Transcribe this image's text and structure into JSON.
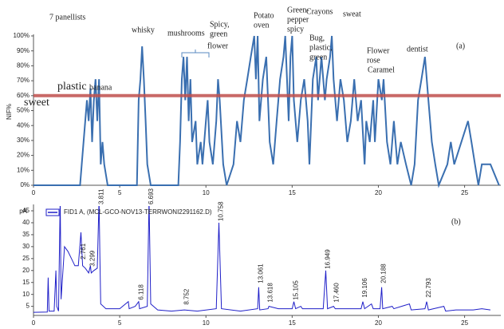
{
  "chart_data": [
    {
      "type": "line",
      "panel_label": "(a)",
      "y_label": "NIF%",
      "color": "#3a6fb0",
      "threshold": 60,
      "threshold_color": "#c0504d",
      "annotations": [
        [
          "7 panellists"
        ],
        [
          "whisky"
        ],
        [
          "mushrooms"
        ],
        [
          "flower"
        ],
        [
          "Spicy,",
          "green"
        ],
        [
          "Potato",
          "oven"
        ],
        [
          "Green-",
          "pepper",
          "spicy"
        ],
        [
          "Crayons"
        ],
        [
          "sweat"
        ],
        [
          "Bug,",
          "plastic,",
          "green"
        ],
        [
          "Flower",
          "rose"
        ],
        [
          "Caramel"
        ],
        [
          "dentist"
        ],
        [
          "sweet"
        ],
        [
          "plastic"
        ],
        [
          "banana"
        ]
      ],
      "x": [
        0,
        2.7,
        2.8,
        3.0,
        3.1,
        3.2,
        3.3,
        3.4,
        3.5,
        3.6,
        3.7,
        3.8,
        3.9,
        4.0,
        4.1,
        4.3,
        6.0,
        6.1,
        6.2,
        6.3,
        6.4,
        6.5,
        6.6,
        6.8,
        8.4,
        8.5,
        8.6,
        8.7,
        8.8,
        8.9,
        9.0,
        9.1,
        9.2,
        9.4,
        9.5,
        9.7,
        9.8,
        10.0,
        10.1,
        10.2,
        10.4,
        10.6,
        10.7,
        10.8,
        11.0,
        11.2,
        11.6,
        11.8,
        12.0,
        12.2,
        12.4,
        12.6,
        12.8,
        12.9,
        13.0,
        13.1,
        13.3,
        13.5,
        13.6,
        13.7,
        13.9,
        14.1,
        14.3,
        14.5,
        14.6,
        14.7,
        14.8,
        14.9,
        15.0,
        15.1,
        15.3,
        15.5,
        15.7,
        15.9,
        16.0,
        16.2,
        16.4,
        16.5,
        16.7,
        16.9,
        17.0,
        17.2,
        17.3,
        17.4,
        17.6,
        17.8,
        18.0,
        18.2,
        18.4,
        18.6,
        18.8,
        19.0,
        19.2,
        19.3,
        19.5,
        19.7,
        19.8,
        20.0,
        20.2,
        20.3,
        20.5,
        20.7,
        20.9,
        21.1,
        21.3,
        21.6,
        21.9,
        22.1,
        22.3,
        22.5,
        22.7,
        22.9,
        23.1,
        23.3,
        23.5,
        24.0,
        24.2,
        24.4,
        25.2,
        25.4,
        25.6,
        25.8,
        26.0,
        26.5,
        27.0
      ],
      "values": [
        0,
        0,
        14,
        43,
        57,
        43,
        65,
        29,
        57,
        71,
        43,
        71,
        14,
        29,
        14,
        0,
        0,
        57,
        71,
        93,
        71,
        43,
        14,
        0,
        0,
        29,
        71,
        86,
        57,
        86,
        43,
        71,
        29,
        43,
        14,
        29,
        14,
        43,
        57,
        29,
        14,
        43,
        71,
        57,
        14,
        0,
        14,
        43,
        29,
        57,
        71,
        86,
        100,
        71,
        100,
        43,
        71,
        86,
        57,
        29,
        14,
        43,
        71,
        86,
        100,
        71,
        43,
        86,
        100,
        57,
        29,
        57,
        71,
        43,
        14,
        71,
        86,
        57,
        86,
        57,
        71,
        86,
        100,
        71,
        43,
        71,
        57,
        29,
        43,
        71,
        43,
        57,
        14,
        43,
        29,
        57,
        29,
        71,
        57,
        71,
        29,
        14,
        43,
        14,
        29,
        14,
        0,
        14,
        57,
        71,
        86,
        57,
        29,
        14,
        0,
        14,
        29,
        14,
        43,
        29,
        14,
        0,
        14,
        14,
        0
      ],
      "xlim": [
        0,
        27.1
      ],
      "ylim": [
        0,
        100
      ],
      "xticks": [
        0,
        5,
        10,
        15,
        20,
        25
      ],
      "yticks": [
        {
          "value": 0,
          "label": "0%"
        },
        {
          "value": 10,
          "label": "10%"
        },
        {
          "value": 20,
          "label": "20%"
        },
        {
          "value": 30,
          "label": "30%"
        },
        {
          "value": 40,
          "label": "40%"
        },
        {
          "value": 50,
          "label": "50%"
        },
        {
          "value": 60,
          "label": "60%"
        },
        {
          "value": 70,
          "label": "70%"
        },
        {
          "value": 80,
          "label": "80%"
        },
        {
          "value": 90,
          "label": "90%"
        },
        {
          "value": 100,
          "label": "100%"
        }
      ]
    },
    {
      "type": "line",
      "panel_label": "(b)",
      "y_label": "pA",
      "series_name": "FID1 A, (MCL-GCO-NOV13-TERRWONI2291162.D)",
      "color": "#1f1fc8",
      "x": [
        0,
        0.8,
        0.85,
        0.9,
        1.2,
        1.3,
        1.35,
        1.45,
        1.55,
        1.6,
        1.8,
        2.0,
        2.2,
        2.4,
        2.6,
        2.75,
        2.85,
        3.0,
        3.2,
        3.3,
        3.35,
        3.5,
        3.7,
        3.8,
        3.85,
        3.9,
        4.2,
        5.0,
        5.5,
        5.55,
        5.9,
        6.1,
        6.15,
        6.6,
        6.7,
        6.8,
        7.2,
        8.0,
        8.75,
        9.5,
        10.6,
        10.75,
        10.9,
        12.0,
        13.0,
        13.06,
        13.12,
        13.6,
        13.65,
        14.2,
        15.0,
        15.1,
        15.2,
        15.5,
        15.6,
        16.8,
        16.95,
        17.05,
        17.4,
        17.5,
        19.0,
        19.1,
        19.2,
        19.6,
        19.7,
        20.1,
        20.19,
        20.25,
        20.8,
        20.9,
        21.8,
        21.9,
        22.7,
        22.8,
        22.9,
        23.8,
        23.9,
        24.5,
        25.0,
        25.5,
        26.0,
        26.5
      ],
      "values": [
        2.5,
        2.6,
        17,
        3,
        3,
        20,
        5,
        3,
        50,
        8,
        30,
        28,
        25,
        22,
        22,
        36,
        22,
        21,
        19,
        22,
        19,
        20,
        21,
        50,
        25,
        6,
        4,
        4,
        7,
        4,
        5,
        7,
        4,
        5,
        50,
        6,
        3.5,
        3,
        3.5,
        3,
        4,
        40,
        4,
        3,
        4,
        13,
        3.5,
        4,
        5,
        4,
        4,
        7,
        4,
        5,
        4,
        4,
        20,
        4,
        5,
        4,
        4,
        7,
        4,
        6,
        4,
        4,
        13,
        4,
        5,
        4,
        6,
        3.5,
        4,
        7,
        3.5,
        5,
        3,
        3.5,
        3.5,
        3.5,
        4,
        3.5
      ],
      "peak_labels": [
        2.761,
        3.299,
        3.811,
        6.118,
        6.693,
        8.752,
        10.758,
        13.061,
        13.618,
        15.105,
        16.949,
        {
          "value": 17.46,
          "label": "17.460"
        },
        19.106,
        20.188,
        22.793
      ],
      "xlim": [
        0,
        27.1
      ],
      "ylim": [
        1.2,
        47
      ],
      "xticks": [
        0,
        5,
        10,
        15,
        20,
        25
      ],
      "yticks": [
        5,
        10,
        15,
        20,
        25,
        30,
        35,
        40,
        45
      ]
    }
  ]
}
